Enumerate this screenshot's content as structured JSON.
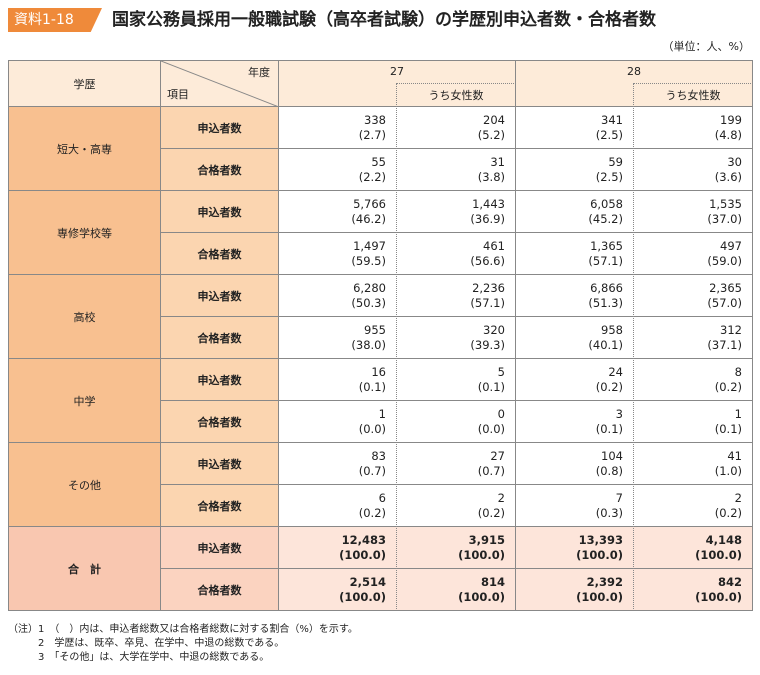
{
  "header": {
    "label": "資料1-18",
    "title": "国家公務員採用一般職試験（高卒者試験）の学歴別申込者数・合格者数",
    "unit": "（単位：人、%）"
  },
  "table": {
    "corner_left": "学歴",
    "corner_top": "年度",
    "corner_bottom": "項目",
    "years": [
      {
        "year": "27",
        "female": "うち女性数"
      },
      {
        "year": "28",
        "female": "うち女性数"
      }
    ],
    "groups": [
      {
        "name": "短大・高専",
        "rows": [
          {
            "item": "申込者数",
            "cells": [
              [
                "338",
                "(2.7)"
              ],
              [
                "204",
                "(5.2)"
              ],
              [
                "341",
                "(2.5)"
              ],
              [
                "199",
                "(4.8)"
              ]
            ]
          },
          {
            "item": "合格者数",
            "cells": [
              [
                "55",
                "(2.2)"
              ],
              [
                "31",
                "(3.8)"
              ],
              [
                "59",
                "(2.5)"
              ],
              [
                "30",
                "(3.6)"
              ]
            ]
          }
        ]
      },
      {
        "name": "専修学校等",
        "rows": [
          {
            "item": "申込者数",
            "cells": [
              [
                "5,766",
                "(46.2)"
              ],
              [
                "1,443",
                "(36.9)"
              ],
              [
                "6,058",
                "(45.2)"
              ],
              [
                "1,535",
                "(37.0)"
              ]
            ]
          },
          {
            "item": "合格者数",
            "cells": [
              [
                "1,497",
                "(59.5)"
              ],
              [
                "461",
                "(56.6)"
              ],
              [
                "1,365",
                "(57.1)"
              ],
              [
                "497",
                "(59.0)"
              ]
            ]
          }
        ]
      },
      {
        "name": "高校",
        "rows": [
          {
            "item": "申込者数",
            "cells": [
              [
                "6,280",
                "(50.3)"
              ],
              [
                "2,236",
                "(57.1)"
              ],
              [
                "6,866",
                "(51.3)"
              ],
              [
                "2,365",
                "(57.0)"
              ]
            ]
          },
          {
            "item": "合格者数",
            "cells": [
              [
                "955",
                "(38.0)"
              ],
              [
                "320",
                "(39.3)"
              ],
              [
                "958",
                "(40.1)"
              ],
              [
                "312",
                "(37.1)"
              ]
            ]
          }
        ]
      },
      {
        "name": "中学",
        "rows": [
          {
            "item": "申込者数",
            "cells": [
              [
                "16",
                "(0.1)"
              ],
              [
                "5",
                "(0.1)"
              ],
              [
                "24",
                "(0.2)"
              ],
              [
                "8",
                "(0.2)"
              ]
            ]
          },
          {
            "item": "合格者数",
            "cells": [
              [
                "1",
                "(0.0)"
              ],
              [
                "0",
                "(0.0)"
              ],
              [
                "3",
                "(0.1)"
              ],
              [
                "1",
                "(0.1)"
              ]
            ]
          }
        ]
      },
      {
        "name": "その他",
        "rows": [
          {
            "item": "申込者数",
            "cells": [
              [
                "83",
                "(0.7)"
              ],
              [
                "27",
                "(0.7)"
              ],
              [
                "104",
                "(0.8)"
              ],
              [
                "41",
                "(1.0)"
              ]
            ]
          },
          {
            "item": "合格者数",
            "cells": [
              [
                "6",
                "(0.2)"
              ],
              [
                "2",
                "(0.2)"
              ],
              [
                "7",
                "(0.3)"
              ],
              [
                "2",
                "(0.2)"
              ]
            ]
          }
        ]
      },
      {
        "name": "合　計",
        "rows": [
          {
            "item": "申込者数",
            "cells": [
              [
                "12,483",
                "(100.0)"
              ],
              [
                "3,915",
                "(100.0)"
              ],
              [
                "13,393",
                "(100.0)"
              ],
              [
                "4,148",
                "(100.0)"
              ]
            ]
          },
          {
            "item": "合格者数",
            "cells": [
              [
                "2,514",
                "(100.0)"
              ],
              [
                "814",
                "(100.0)"
              ],
              [
                "2,392",
                "(100.0)"
              ],
              [
                "842",
                "(100.0)"
              ]
            ]
          }
        ]
      }
    ]
  },
  "notes": {
    "label": "（注）",
    "items": [
      "1　（　）内は、申込者総数又は合格者総数に対する割合（%）を示す。",
      "2　学歴は、既卒、卒見、在学中、中退の総数である。",
      "3　「その他」は、大学在学中、中退の総数である。"
    ]
  }
}
